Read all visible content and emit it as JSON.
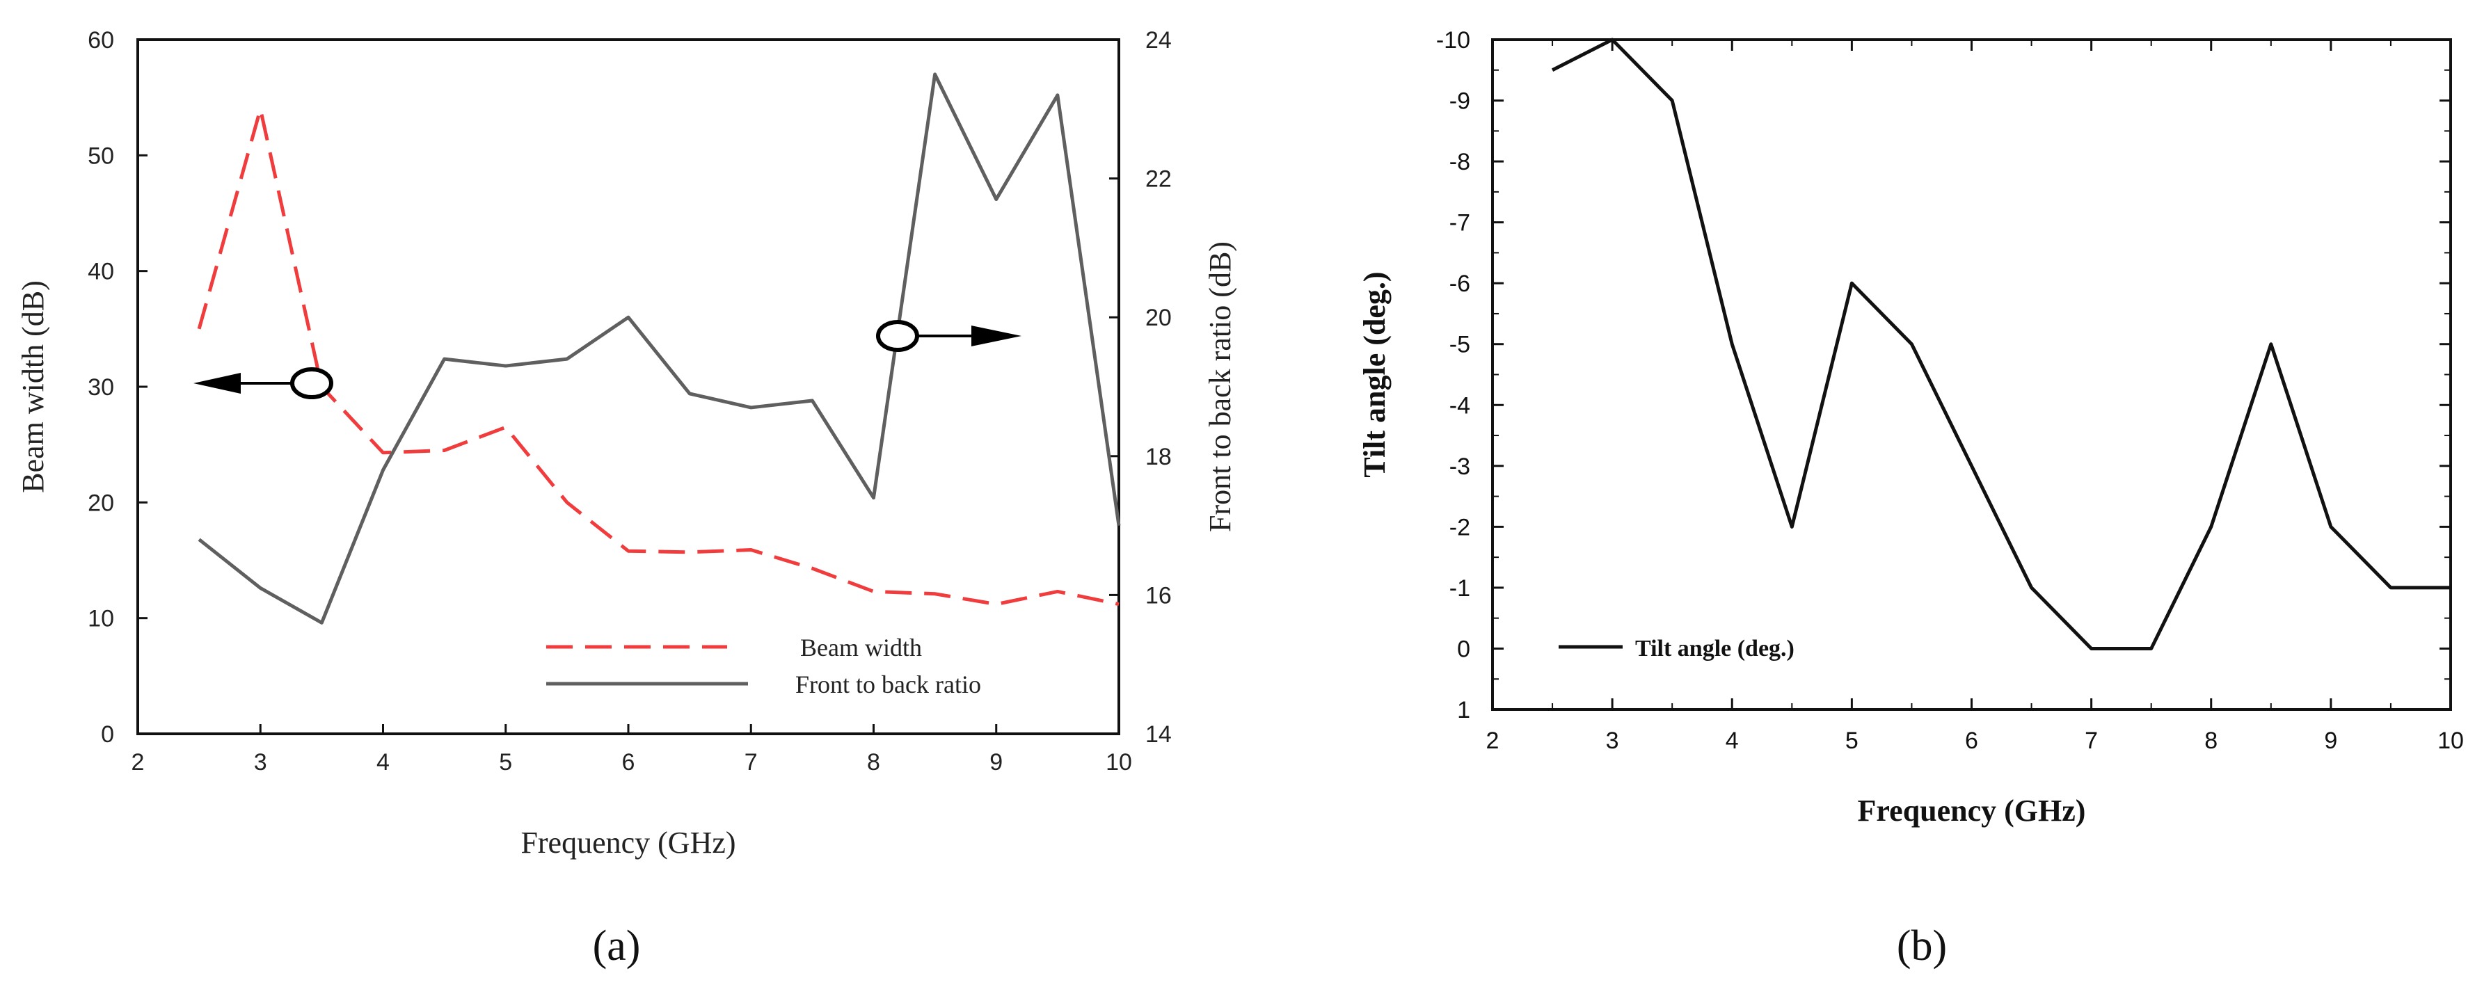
{
  "chart_data": [
    {
      "id": "a",
      "type": "line",
      "panel_label": "(a)",
      "xlabel": "Frequency (GHz)",
      "ylabel": "Beam width (dB)",
      "y2label": "Front to back ratio (dB)",
      "xlim": [
        2,
        10
      ],
      "ylim": [
        0,
        60
      ],
      "y2lim": [
        14,
        24
      ],
      "xticks": [
        "2",
        "3",
        "4",
        "5",
        "6",
        "7",
        "8",
        "9",
        "10"
      ],
      "yticks": [
        "0",
        "10",
        "20",
        "30",
        "40",
        "50",
        "60"
      ],
      "y2ticks": [
        "14",
        "16",
        "18",
        "20",
        "22",
        "24"
      ],
      "colors": {
        "beam": "#f03c3c",
        "ftb": "#5f5f5f"
      },
      "series": [
        {
          "name": "Beam width",
          "axis": "left",
          "style": "dashed",
          "x": [
            2.5,
            3,
            3.5,
            4,
            4.5,
            5,
            5.5,
            6,
            6.5,
            7,
            7.5,
            8,
            8.5,
            9,
            9.5,
            10
          ],
          "values": [
            35,
            54,
            30,
            24.3,
            24.5,
            26.5,
            20,
            15.8,
            15.7,
            15.9,
            14.3,
            12.3,
            12.1,
            11.2,
            12.3,
            11.2
          ]
        },
        {
          "name": "Front to back ratio",
          "axis": "right",
          "style": "solid",
          "x": [
            2.5,
            3,
            3.5,
            4,
            4.5,
            5,
            5.5,
            6,
            6.5,
            7,
            7.5,
            8,
            8.5,
            9,
            9.5,
            10
          ],
          "values": [
            16.8,
            16.1,
            15.6,
            17.8,
            19.4,
            19.3,
            19.4,
            20.0,
            18.9,
            18.7,
            18.8,
            17.4,
            23.5,
            21.7,
            23.2,
            17.0
          ]
        }
      ]
    },
    {
      "id": "b",
      "type": "line",
      "panel_label": "(b)",
      "xlabel": "Frequency (GHz)",
      "ylabel": "Tilt angle (deg.)",
      "xlim": [
        2,
        10
      ],
      "ylim": [
        1,
        -10
      ],
      "xticks": [
        "2",
        "3",
        "4",
        "5",
        "6",
        "7",
        "8",
        "9",
        "10"
      ],
      "yticks": [
        "-10",
        "-9",
        "-8",
        "-7",
        "-6",
        "-5",
        "-4",
        "-3",
        "-2",
        "-1",
        "0",
        "1"
      ],
      "colors": {
        "tilt": "#111111"
      },
      "series": [
        {
          "name": "Tilt angle (deg.)",
          "style": "solid",
          "x": [
            2.5,
            3,
            3.5,
            4,
            4.5,
            5,
            5.5,
            6,
            6.5,
            7,
            7.5,
            8,
            8.5,
            9,
            9.5,
            10
          ],
          "values": [
            -9.5,
            -10,
            -9,
            -5,
            -2,
            -6,
            -5,
            -3,
            -1,
            0,
            0,
            -2,
            -5,
            -2,
            -1,
            -1
          ]
        }
      ]
    }
  ]
}
